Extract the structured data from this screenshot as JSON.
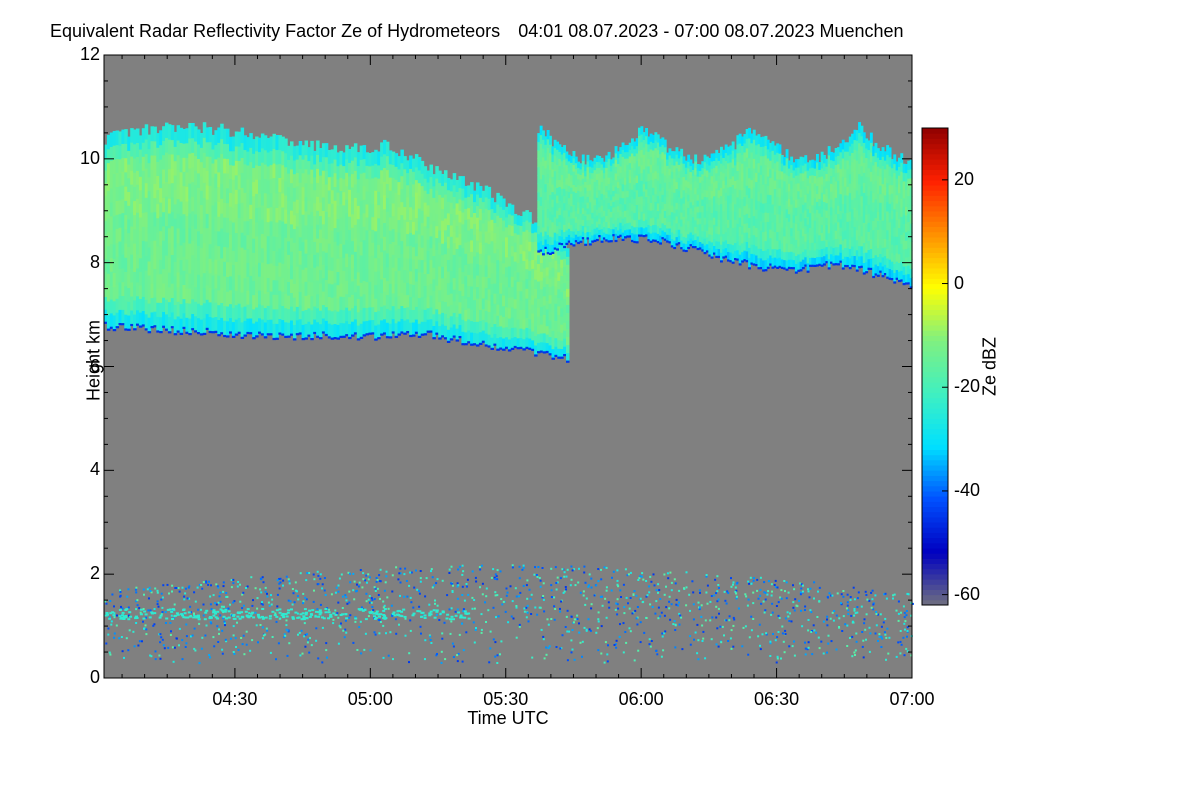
{
  "chart_data": {
    "type": "heatmap",
    "title": "Equivalent Radar Reflectivity Factor Ze of Hydrometeors",
    "subtitle": "04:01 08.07.2023 - 07:00 08.07.2023 Muenchen",
    "xlabel": "Time UTC",
    "ylabel": "Height km",
    "colorbar_label": "Ze dBZ",
    "x_range": [
      "04:01",
      "07:00"
    ],
    "x_ticks": [
      "04:30",
      "05:00",
      "05:30",
      "06:00",
      "06:30",
      "07:00"
    ],
    "y_range": [
      0,
      12
    ],
    "y_ticks": [
      "0",
      "2",
      "4",
      "6",
      "8",
      "10",
      "12"
    ],
    "colorbar_range": [
      -62,
      30
    ],
    "colorbar_ticks": [
      "20",
      "0",
      "-20",
      "-40",
      "-60"
    ],
    "background_color": "#808080",
    "colormap": [
      "#707080",
      "#0000c0",
      "#0050ff",
      "#00e0ff",
      "#40f0c0",
      "#80f080",
      "#ffff00",
      "#ff9000",
      "#ff2000",
      "#900000"
    ],
    "features": [
      {
        "name": "upper cloud layer",
        "time_start": "04:01",
        "time_end": "05:44",
        "base_km": 6.2,
        "top_km": 10.4,
        "typical_dBZ": -12
      },
      {
        "name": "upper cloud layer (later)",
        "time_start": "05:37",
        "time_end": "07:00",
        "base_km": 8.2,
        "top_km": 10.6,
        "typical_dBZ": -15
      },
      {
        "name": "low-level clutter",
        "time_start": "04:01",
        "time_end": "07:00",
        "base_km": 0.3,
        "top_km": 2.3,
        "typical_dBZ": -30
      }
    ]
  }
}
